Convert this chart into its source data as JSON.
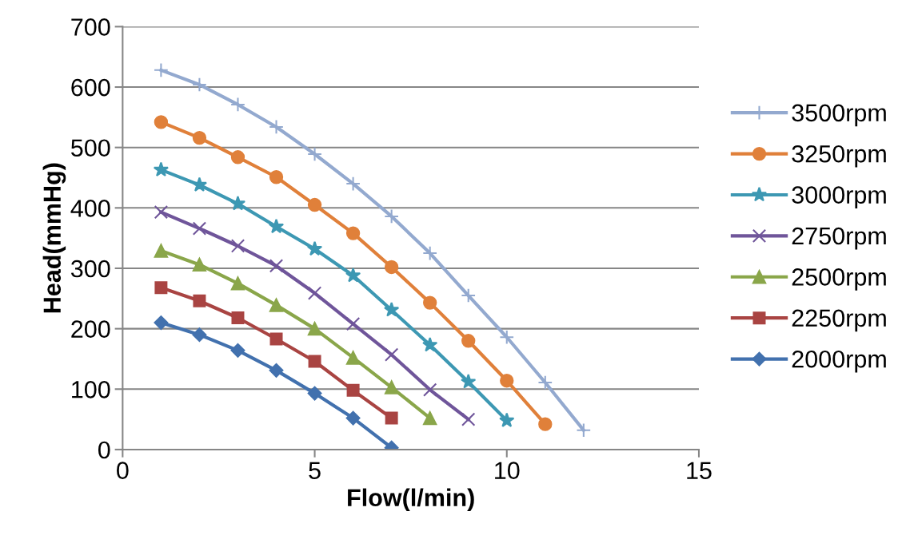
{
  "chart_data": {
    "type": "line",
    "xlabel": "Flow(l/min)",
    "ylabel": "Head(mmHg)",
    "xlim": [
      0,
      15
    ],
    "xticks": [
      0,
      5,
      10,
      15
    ],
    "ylim": [
      0,
      700
    ],
    "yticks": [
      0,
      100,
      200,
      300,
      400,
      500,
      600,
      700
    ],
    "grid": "y",
    "legend": "right",
    "series": [
      {
        "name": "3500rpm",
        "color": "#93a9cf",
        "marker": "cross",
        "x": [
          1,
          2,
          3,
          4,
          5,
          6,
          7,
          8,
          9,
          10,
          11,
          12
        ],
        "values": [
          628,
          604,
          571,
          534,
          489,
          440,
          386,
          325,
          255,
          186,
          111,
          32
        ]
      },
      {
        "name": "3250rpm",
        "color": "#e0803a",
        "marker": "circle",
        "x": [
          1,
          2,
          3,
          4,
          5,
          6,
          7,
          8,
          9,
          10,
          11
        ],
        "values": [
          542,
          516,
          484,
          451,
          405,
          358,
          302,
          243,
          180,
          114,
          42
        ]
      },
      {
        "name": "3000rpm",
        "color": "#3d98b3",
        "marker": "star",
        "x": [
          1,
          2,
          3,
          4,
          5,
          6,
          7,
          8,
          9,
          10
        ],
        "values": [
          463,
          438,
          407,
          369,
          332,
          288,
          231,
          173,
          112,
          48
        ]
      },
      {
        "name": "2750rpm",
        "color": "#6f559a",
        "marker": "x",
        "x": [
          1,
          2,
          3,
          4,
          5,
          6,
          7,
          8,
          9
        ],
        "values": [
          393,
          366,
          337,
          304,
          259,
          208,
          157,
          99,
          50
        ]
      },
      {
        "name": "2500rpm",
        "color": "#8aa64a",
        "marker": "triangle",
        "x": [
          1,
          2,
          3,
          4,
          5,
          6,
          7,
          8
        ],
        "values": [
          329,
          306,
          275,
          239,
          200,
          152,
          103,
          52
        ]
      },
      {
        "name": "2250rpm",
        "color": "#a94442",
        "marker": "square",
        "x": [
          1,
          2,
          3,
          4,
          5,
          6,
          7
        ],
        "values": [
          268,
          246,
          218,
          183,
          146,
          98,
          52
        ]
      },
      {
        "name": "2000rpm",
        "color": "#4271ae",
        "marker": "diamond",
        "x": [
          1,
          2,
          3,
          4,
          5,
          6,
          7
        ],
        "values": [
          210,
          190,
          164,
          131,
          93,
          52,
          3
        ]
      }
    ]
  }
}
